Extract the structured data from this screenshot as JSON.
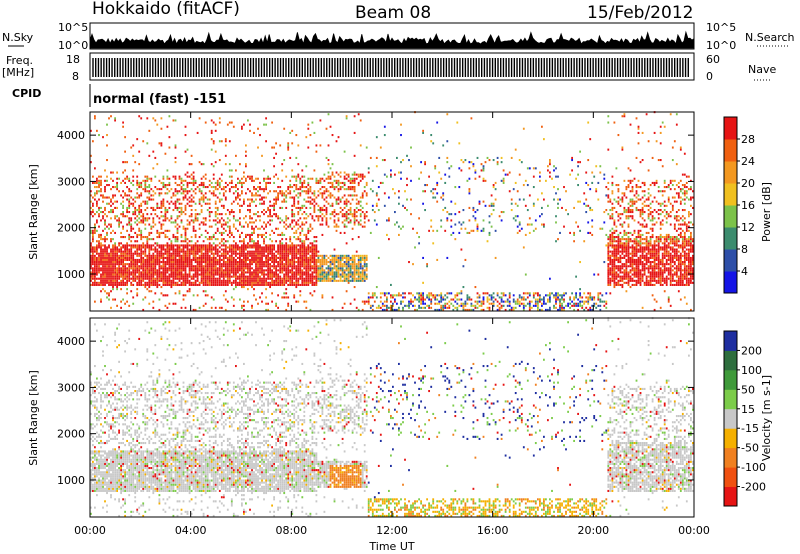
{
  "header": {
    "radar": "Hokkaido (fitACF)",
    "beam": "Beam 08",
    "date": "15/Feb/2012"
  },
  "side_labels": {
    "nsky": "N.Sky",
    "nsearch": "N.Search",
    "freq": "Freq.",
    "freq_unit": "[MHz]",
    "nave": "Nave",
    "cpid": "CPID"
  },
  "strip_ticks": {
    "nsky_top": "10^5",
    "nsky_bottom": "10^0",
    "nsearch_top": "10^5",
    "nsearch_bottom": "10^0",
    "freq_top": "18",
    "freq_bottom": "8",
    "nave_top": "60",
    "nave_bottom": "0"
  },
  "cpid_text": "normal (fast) -151",
  "chart_data": [
    {
      "type": "heatmap",
      "panel": "power",
      "ylabel": "Slant Range [km]",
      "ylim": [
        200,
        4500
      ],
      "yticks": [
        "1000",
        "2000",
        "3000",
        "4000"
      ],
      "colorbar_label": "Power [dB]",
      "colorbar_ticks": [
        "4",
        "8",
        "12",
        "16",
        "20",
        "24",
        "28"
      ],
      "colors": [
        "#1414e6",
        "#2e4fa8",
        "#3c8c6e",
        "#7cc24a",
        "#f0c020",
        "#f39820",
        "#f06010",
        "#e61414"
      ],
      "grid": false
    },
    {
      "type": "heatmap",
      "panel": "velocity",
      "ylabel": "Slant Range [km]",
      "ylim": [
        200,
        4500
      ],
      "yticks": [
        "1000",
        "2000",
        "3000",
        "4000"
      ],
      "colorbar_label": "Velocity [m s-1]",
      "colorbar_ticks": [
        "200",
        "100",
        "50",
        "15",
        "-15",
        "-50",
        "-100",
        "-200"
      ],
      "colors": [
        "#1e2ea0",
        "#2e6e3e",
        "#3f9a3a",
        "#7ccc4a",
        "#c8c8c8",
        "#f5b000",
        "#f08020",
        "#f05010",
        "#e61414"
      ],
      "xlabel": "Time UT",
      "xticks": [
        "00:00",
        "04:00",
        "08:00",
        "12:00",
        "16:00",
        "20:00",
        "00:00"
      ],
      "grid": false
    }
  ]
}
